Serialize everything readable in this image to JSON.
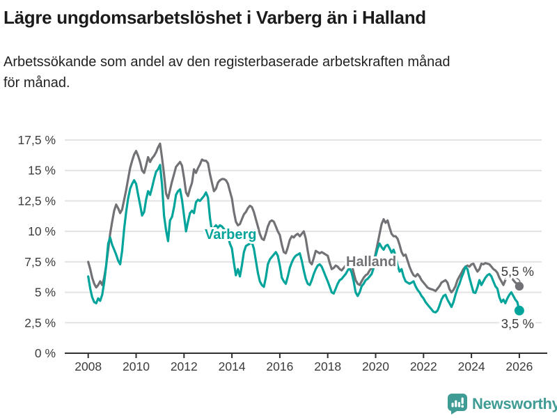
{
  "title": "Lägre ungdomsarbetslöshet i Varberg än i Halland",
  "subtitle_lines": [
    "Arbetssökande som andel av den registerbaserade arbetskraften månad",
    "för månad."
  ],
  "branding": {
    "logo_text": "Newsworthy",
    "logo_icon": "newsworthy-chart-bubble-icon",
    "brand_color": "#3f9c94"
  },
  "chart_data": {
    "type": "line",
    "title": "Lägre ungdomsarbetslöshet i Varberg än i Halland",
    "subtitle": "Arbetssökande som andel av den registerbaserade arbetskraften månad för månad.",
    "unit": "%",
    "x_start_year": 2008,
    "points_per_month": 1,
    "x_ticks": [
      2008,
      2010,
      2012,
      2014,
      2016,
      2018,
      2020,
      2022,
      2024,
      2026
    ],
    "y_ticks": [
      0,
      2.5,
      5,
      7.5,
      10,
      12.5,
      15,
      17.5
    ],
    "y_tick_labels": [
      "0 %",
      "2,5 %",
      "5 %",
      "7,5 %",
      "10 %",
      "12,5 %",
      "15 %",
      "17,5 %"
    ],
    "ylim": [
      0,
      17.5
    ],
    "grid": "horizontal",
    "legend_position": "inline-labels",
    "colors": {
      "varberg": "#00a49a",
      "halland": "#727276",
      "axis": "#303030",
      "grid": "#e3e3e3"
    },
    "series": [
      {
        "name": "Halland",
        "color": "#727276",
        "end_label": "5,5 %",
        "end_value": 5.5,
        "dot_radius": 6.2,
        "values": [
          7.5,
          6.9,
          6.2,
          5.7,
          5.4,
          5.6,
          5.9,
          5.6,
          6.2,
          7.2,
          8.5,
          9.8,
          10.8,
          11.7,
          12.2,
          11.9,
          11.5,
          11.8,
          12.6,
          13.4,
          14.3,
          15.2,
          15.8,
          16.3,
          16.6,
          16.2,
          15.7,
          15.0,
          14.8,
          15.4,
          16.1,
          15.7,
          16.0,
          16.2,
          16.5,
          16.9,
          17.2,
          16.0,
          14.7,
          13.1,
          12.7,
          13.4,
          14.1,
          14.7,
          15.3,
          15.5,
          15.7,
          15.4,
          14.4,
          13.2,
          12.9,
          13.5,
          14.0,
          15.1,
          14.8,
          15.2,
          15.5,
          15.9,
          15.8,
          15.8,
          15.6,
          14.7,
          14.0,
          13.3,
          13.5,
          14.0,
          14.2,
          14.3,
          14.3,
          14.2,
          13.9,
          13.3,
          12.7,
          11.6,
          10.8,
          10.5,
          10.6,
          11.0,
          11.4,
          11.6,
          11.9,
          12.1,
          12.0,
          11.6,
          11.0,
          10.4,
          9.8,
          9.4,
          9.3,
          9.8,
          10.4,
          10.8,
          10.9,
          10.8,
          10.4,
          10.0,
          9.7,
          8.9,
          8.3,
          8.2,
          8.7,
          9.3,
          9.6,
          9.5,
          9.7,
          9.8,
          9.6,
          9.8,
          10.0,
          9.4,
          8.4,
          7.5,
          7.3,
          7.8,
          8.4,
          8.3,
          8.2,
          8.3,
          8.2,
          8.1,
          8.0,
          7.4,
          6.9,
          7.0,
          7.2,
          7.1,
          6.9,
          6.8,
          7.0,
          7.2,
          7.4,
          7.6,
          7.3,
          6.6,
          6.0,
          5.7,
          5.6,
          5.9,
          6.2,
          6.4,
          6.5,
          6.8,
          7.0,
          7.4,
          8.2,
          9.0,
          9.8,
          10.6,
          11.0,
          10.7,
          10.9,
          10.3,
          9.8,
          9.6,
          9.6,
          9.4,
          8.9,
          8.3,
          8.0,
          8.1,
          7.6,
          7.1,
          6.7,
          6.4,
          6.3,
          6.5,
          6.3,
          6.0,
          5.8,
          5.6,
          5.4,
          5.3,
          5.25,
          5.2,
          5.1,
          5.3,
          5.5,
          5.8,
          5.9,
          6.0,
          5.8,
          5.25,
          5.0,
          5.2,
          5.5,
          6.0,
          6.3,
          6.6,
          6.9,
          7.1,
          7.2,
          7.1,
          7.3,
          7.35,
          7.0,
          6.7,
          6.9,
          7.35,
          7.3,
          7.4,
          7.35,
          7.3,
          7.1,
          6.9,
          6.8,
          6.6,
          6.2,
          5.9,
          5.6,
          6.0,
          6.3,
          6.4,
          6.2,
          6.0,
          5.8,
          5.7,
          5.5
        ]
      },
      {
        "name": "Varberg",
        "color": "#00a49a",
        "end_label": "3,5 %",
        "end_value": 3.5,
        "dot_radius": 7,
        "values": [
          6.3,
          5.3,
          4.6,
          4.2,
          4.1,
          4.5,
          4.3,
          4.8,
          5.8,
          7.2,
          9.0,
          9.5,
          8.9,
          8.5,
          8.1,
          7.6,
          7.3,
          8.4,
          10.2,
          11.6,
          12.7,
          13.5,
          13.9,
          14.2,
          13.9,
          13.0,
          12.2,
          11.3,
          11.6,
          12.6,
          13.3,
          13.0,
          13.6,
          14.3,
          14.9,
          15.1,
          15.45,
          13.8,
          11.3,
          10.1,
          9.2,
          10.9,
          11.2,
          12.0,
          13.0,
          13.3,
          13.45,
          12.6,
          11.3,
          10.0,
          10.8,
          11.5,
          11.7,
          11.5,
          12.4,
          12.6,
          12.5,
          12.7,
          12.9,
          13.2,
          12.8,
          11.1,
          10.0,
          10.3,
          10.5,
          10.3,
          10.5,
          10.4,
          10.2,
          10.0,
          9.6,
          9.0,
          8.6,
          7.4,
          6.4,
          6.9,
          6.3,
          7.2,
          8.3,
          8.8,
          8.9,
          9.0,
          9.1,
          8.6,
          7.6,
          6.6,
          5.9,
          5.6,
          5.45,
          6.2,
          7.3,
          7.7,
          7.9,
          8.1,
          8.3,
          8.0,
          7.2,
          6.2,
          5.9,
          5.7,
          6.3,
          7.0,
          7.45,
          7.8,
          8.0,
          8.1,
          8.2,
          7.6,
          6.8,
          6.1,
          5.7,
          5.6,
          6.0,
          6.5,
          6.9,
          7.2,
          7.3,
          7.1,
          6.7,
          6.3,
          5.9,
          5.45,
          5.0,
          4.9,
          5.3,
          5.7,
          6.0,
          6.1,
          6.3,
          6.5,
          6.8,
          7.0,
          6.6,
          5.9,
          5.0,
          4.7,
          5.0,
          5.5,
          5.7,
          6.0,
          6.1,
          6.3,
          6.5,
          7.0,
          8.0,
          8.6,
          9.0,
          8.7,
          8.5,
          8.8,
          8.9,
          8.6,
          8.25,
          8.5,
          8.0,
          7.2,
          6.7,
          6.9,
          6.3,
          5.9,
          5.8,
          5.7,
          5.8,
          5.9,
          5.5,
          5.2,
          5.0,
          4.7,
          4.5,
          4.2,
          4.0,
          3.8,
          3.6,
          3.4,
          3.35,
          3.5,
          3.9,
          4.4,
          4.7,
          4.8,
          4.4,
          4.1,
          3.8,
          4.2,
          4.8,
          5.3,
          5.7,
          6.2,
          6.6,
          7.1,
          6.9,
          6.2,
          5.6,
          5.0,
          4.95,
          5.4,
          6.0,
          5.6,
          5.9,
          6.2,
          6.4,
          6.5,
          6.3,
          5.9,
          5.5,
          5.3,
          4.6,
          4.2,
          4.4,
          4.1,
          4.5,
          4.8,
          5.0,
          4.7,
          4.4,
          4.2,
          3.5
        ]
      }
    ]
  }
}
